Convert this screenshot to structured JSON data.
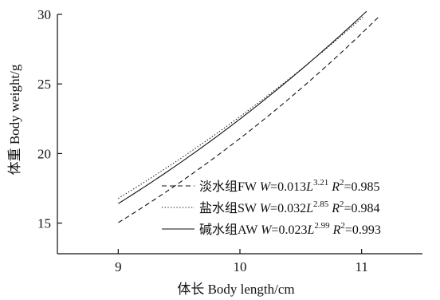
{
  "chart_data": {
    "type": "line",
    "xlabel": "体长 Body length/cm",
    "ylabel": "体重 Body weight/g",
    "xlim": [
      8.5,
      11.5
    ],
    "ylim": [
      12.8,
      30.0
    ],
    "x_ticks": [
      9,
      10,
      11
    ],
    "y_ticks": [
      15,
      20,
      25,
      30
    ],
    "grid": false,
    "legend_position": "bottom-right",
    "series": [
      {
        "name": "淡水组FW",
        "equation": "W=0.013L^3.21 R^2=0.985",
        "a": 0.013,
        "b": 3.21,
        "r2": 0.985,
        "x_range": [
          9.0,
          11.15
        ],
        "style": "dashed",
        "label_parts": [
          "淡水组FW ",
          "W",
          "=0.013",
          "L",
          "3.21",
          " ",
          "R",
          "2",
          "=0.985"
        ]
      },
      {
        "name": "盐水组SW",
        "equation": "W=0.032L^2.85 R^2=0.984",
        "a": 0.032,
        "b": 2.85,
        "r2": 0.984,
        "x_range": [
          9.0,
          11.02
        ],
        "style": "dotted",
        "label_parts": [
          "盐水组SW ",
          "W",
          "=0.032",
          "L",
          "2.85",
          " ",
          "R",
          "2",
          "=0.984"
        ]
      },
      {
        "name": "碱水组AW",
        "equation": "W=0.023L^2.99 R^2=0.993",
        "a": 0.023,
        "b": 2.99,
        "r2": 0.993,
        "x_range": [
          9.0,
          11.04
        ],
        "style": "solid",
        "label_parts": [
          "碱水组AW ",
          "W",
          "=0.023",
          "L",
          "2.99",
          " ",
          "R",
          "2",
          "=0.993"
        ]
      }
    ]
  }
}
